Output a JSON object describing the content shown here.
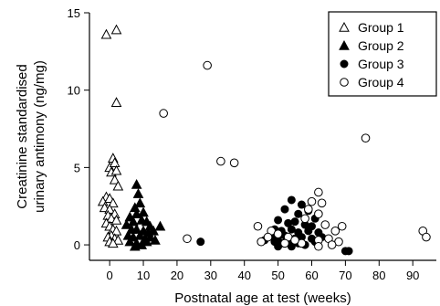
{
  "chart_data": {
    "type": "scatter",
    "title": "",
    "xlabel": "Postnatal age at test (weeks)",
    "ylabel_lines": [
      "Creatinine standardised",
      "urinary antimony (ng/mg)"
    ],
    "xlim": [
      -6,
      97
    ],
    "ylim": [
      -1,
      15
    ],
    "x_ticks": [
      0,
      10,
      20,
      30,
      40,
      50,
      60,
      70,
      80,
      90
    ],
    "y_ticks": [
      0,
      5,
      10,
      15
    ],
    "legend_position": "top-right",
    "grid": false,
    "series": [
      {
        "name": "Group 1",
        "marker": "triangle-open",
        "points": [
          [
            -1,
            13.6
          ],
          [
            2,
            13.9
          ],
          [
            2,
            9.2
          ],
          [
            0,
            5.0
          ],
          [
            1,
            5.6
          ],
          [
            1.5,
            5.3
          ],
          [
            0.5,
            4.7
          ],
          [
            2,
            4.8
          ],
          [
            1.5,
            4.2
          ],
          [
            2.5,
            3.8
          ],
          [
            -1,
            3.1
          ],
          [
            -2,
            2.8
          ],
          [
            0,
            3.0
          ],
          [
            1,
            2.7
          ],
          [
            -1.5,
            2.4
          ],
          [
            0,
            2.3
          ],
          [
            1.5,
            2.0
          ],
          [
            -0.5,
            1.9
          ],
          [
            0.5,
            1.7
          ],
          [
            2,
            1.6
          ],
          [
            -1,
            1.4
          ],
          [
            0,
            1.2
          ],
          [
            1,
            1.0
          ],
          [
            2,
            0.9
          ],
          [
            0.5,
            0.6
          ],
          [
            -0.5,
            0.5
          ],
          [
            1.5,
            0.4
          ],
          [
            0,
            0.2
          ],
          [
            2.5,
            0.3
          ],
          [
            1,
            0.1
          ]
        ]
      },
      {
        "name": "Group 2",
        "marker": "triangle-filled",
        "points": [
          [
            8,
            3.9
          ],
          [
            8.5,
            3.3
          ],
          [
            9,
            2.7
          ],
          [
            7.5,
            2.4
          ],
          [
            8,
            2.0
          ],
          [
            10,
            2.1
          ],
          [
            6,
            1.8
          ],
          [
            7,
            1.5
          ],
          [
            9.5,
            1.6
          ],
          [
            11,
            1.5
          ],
          [
            12,
            1.2
          ],
          [
            15,
            1.2
          ],
          [
            5,
            1.3
          ],
          [
            6.5,
            1.0
          ],
          [
            8,
            1.0
          ],
          [
            10,
            0.9
          ],
          [
            11.5,
            0.8
          ],
          [
            13,
            0.9
          ],
          [
            5.5,
            0.6
          ],
          [
            7,
            0.5
          ],
          [
            9,
            0.6
          ],
          [
            10.5,
            0.4
          ],
          [
            12,
            0.5
          ],
          [
            6,
            0.2
          ],
          [
            8,
            0.1
          ],
          [
            11,
            0.2
          ],
          [
            13.5,
            0.3
          ],
          [
            9.5,
            0.0
          ],
          [
            7.5,
            -0.1
          ]
        ]
      },
      {
        "name": "Group 3",
        "marker": "circle-filled",
        "points": [
          [
            27,
            0.2
          ],
          [
            54,
            2.9
          ],
          [
            57,
            2.6
          ],
          [
            52,
            2.3
          ],
          [
            56,
            2.0
          ],
          [
            59,
            2.2
          ],
          [
            61,
            1.7
          ],
          [
            50,
            1.6
          ],
          [
            53,
            1.4
          ],
          [
            55,
            1.5
          ],
          [
            58,
            1.3
          ],
          [
            60,
            1.2
          ],
          [
            49,
            1.0
          ],
          [
            51,
            0.9
          ],
          [
            54,
            1.0
          ],
          [
            56,
            0.8
          ],
          [
            59,
            0.9
          ],
          [
            62,
            0.8
          ],
          [
            48,
            0.6
          ],
          [
            50,
            0.5
          ],
          [
            52,
            0.6
          ],
          [
            55,
            0.4
          ],
          [
            57,
            0.5
          ],
          [
            60,
            0.4
          ],
          [
            49,
            0.2
          ],
          [
            51,
            0.1
          ],
          [
            53,
            0.2
          ],
          [
            56,
            0.1
          ],
          [
            58,
            0.0
          ],
          [
            61,
            0.2
          ],
          [
            54,
            -0.1
          ],
          [
            50,
            -0.1
          ],
          [
            63,
            0.5
          ],
          [
            46,
            0.3
          ],
          [
            70,
            -0.4
          ],
          [
            71,
            -0.4
          ]
        ]
      },
      {
        "name": "Group 4",
        "marker": "circle-open",
        "points": [
          [
            29,
            11.6
          ],
          [
            16,
            8.5
          ],
          [
            76,
            6.9
          ],
          [
            33,
            5.4
          ],
          [
            37,
            5.3
          ],
          [
            62,
            3.4
          ],
          [
            60,
            2.8
          ],
          [
            63,
            2.7
          ],
          [
            59,
            2.3
          ],
          [
            62,
            2.0
          ],
          [
            58,
            1.7
          ],
          [
            64,
            1.3
          ],
          [
            44,
            1.2
          ],
          [
            48,
            0.9
          ],
          [
            69,
            1.2
          ],
          [
            67,
            0.9
          ],
          [
            50,
            0.7
          ],
          [
            93,
            0.9
          ],
          [
            94,
            0.5
          ],
          [
            23,
            0.4
          ],
          [
            47,
            0.5
          ],
          [
            53,
            0.5
          ],
          [
            62,
            0.3
          ],
          [
            65,
            0.4
          ],
          [
            68,
            0.2
          ],
          [
            45,
            0.2
          ],
          [
            57,
            0.1
          ],
          [
            62,
            -0.1
          ],
          [
            66,
            0.0
          ],
          [
            52,
            0.1
          ],
          [
            55,
            0.3
          ]
        ]
      }
    ]
  }
}
